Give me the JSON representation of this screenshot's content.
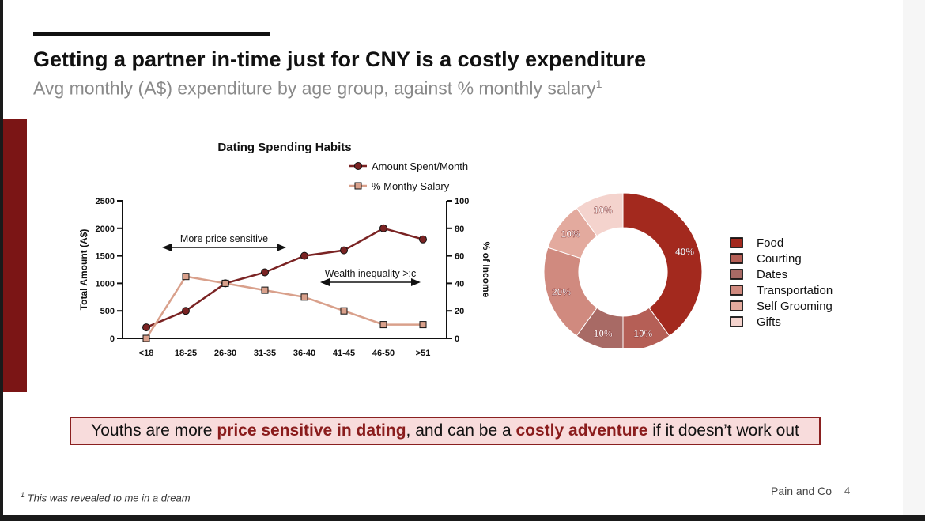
{
  "slide": {
    "title": "Getting a partner in-time just for CNY is a costly expenditure",
    "subtitle": "Avg monthly (A$) expenditure by age group, against % monthly salary",
    "subtitle_sup": "1",
    "callout": {
      "part1": "Youths are more ",
      "hl1": "price sensitive in dating",
      "part2": ", and can be a ",
      "hl2": "costly adventure",
      "part3": " if it doesn’t work out"
    },
    "footnote_sup": "1",
    "footnote": " This was revealed to me in a dream",
    "brand": "Pain and Co",
    "page_number": "4",
    "colors": {
      "accent": "#7b1515",
      "callout_bg": "#f8dcdc",
      "callout_border": "#8a2020"
    }
  },
  "chart_data": [
    {
      "type": "line",
      "title": "Dating Spending Habits",
      "categories": [
        "<18",
        "18-25",
        "26-30",
        "31-35",
        "36-40",
        "41-45",
        "46-50",
        ">51"
      ],
      "ylabel": "Total Amount (A$)",
      "y2label": "% of Income",
      "ylim": [
        0,
        2500
      ],
      "y2lim": [
        0,
        100
      ],
      "yticks": [
        0,
        500,
        1000,
        1500,
        2000,
        2500
      ],
      "y2ticks": [
        0,
        20,
        40,
        60,
        80,
        100
      ],
      "legend_position": "top-right",
      "series": [
        {
          "name": "Amount Spent/Month",
          "axis": "left",
          "marker": "circle",
          "color": "#7a2323",
          "values": [
            200,
            500,
            1000,
            1200,
            1500,
            1600,
            2000,
            1800
          ]
        },
        {
          "name": "% Monthy Salary",
          "axis": "right",
          "marker": "square",
          "color": "#d9a08b",
          "values": [
            0,
            45,
            40,
            35,
            30,
            20,
            10,
            10
          ]
        }
      ],
      "annotations": [
        {
          "text": "More price sensitive",
          "from": "<18",
          "to": "36-40"
        },
        {
          "text": "Wealth inequality >:c",
          "from": "36-40",
          "to": ">51"
        }
      ]
    },
    {
      "type": "pie",
      "style": "donut",
      "legend_position": "right",
      "slices": [
        {
          "label": "Food",
          "value": 40,
          "display": "40%",
          "color": "#a3291e"
        },
        {
          "label": "Courting",
          "value": 10,
          "display": "10%",
          "color": "#b55f56"
        },
        {
          "label": "Dates",
          "value": 10,
          "display": "10%",
          "color": "#a86a65"
        },
        {
          "label": "Transportation",
          "value": 20,
          "display": "20%",
          "color": "#d08a7f"
        },
        {
          "label": "Self Grooming",
          "value": 10,
          "display": "10%",
          "color": "#e3aa9e"
        },
        {
          "label": "Gifts",
          "value": 10,
          "display": "10%",
          "color": "#f4d3cd"
        }
      ]
    }
  ]
}
